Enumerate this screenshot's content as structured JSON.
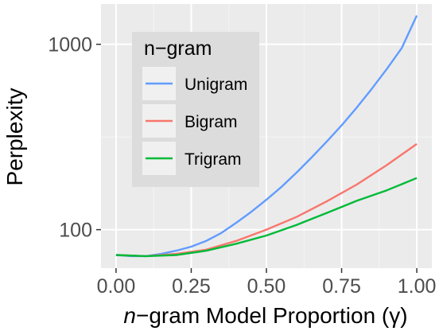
{
  "chart_data": {
    "type": "line",
    "xlabel": "n−gram Model Proportion (γ)",
    "ylabel": "Perplexity",
    "x_ticks": [
      "0.00",
      "0.25",
      "0.50",
      "0.75",
      "1.00"
    ],
    "x_tick_values": [
      0,
      0.25,
      0.5,
      0.75,
      1.0
    ],
    "y_ticks": [
      "100",
      "1000"
    ],
    "y_tick_values": [
      100,
      1000
    ],
    "y_scale": "log",
    "xlim": [
      -0.05,
      1.05
    ],
    "ylim": [
      62,
      1650
    ],
    "grid": true,
    "legend": {
      "title": "n−gram",
      "position": "top-left"
    },
    "series": [
      {
        "name": "Unigram",
        "color": "#619cff",
        "x": [
          0,
          0.05,
          0.1,
          0.15,
          0.2,
          0.25,
          0.3,
          0.35,
          0.4,
          0.45,
          0.5,
          0.55,
          0.6,
          0.65,
          0.7,
          0.75,
          0.8,
          0.85,
          0.9,
          0.95,
          1.0
        ],
        "y": [
          73,
          72,
          72,
          74,
          77,
          81,
          87,
          96,
          109,
          125,
          145,
          170,
          203,
          245,
          298,
          365,
          455,
          575,
          735,
          955,
          1430
        ]
      },
      {
        "name": "Bigram",
        "color": "#f8766d",
        "x": [
          0,
          0.1,
          0.2,
          0.3,
          0.4,
          0.5,
          0.6,
          0.7,
          0.8,
          0.9,
          1.0
        ],
        "y": [
          73,
          72,
          74,
          78,
          87,
          100,
          117,
          142,
          175,
          223,
          290
        ]
      },
      {
        "name": "Trigram",
        "color": "#00ba38",
        "x": [
          0,
          0.1,
          0.2,
          0.3,
          0.4,
          0.5,
          0.6,
          0.7,
          0.8,
          0.9,
          1.0
        ],
        "y": [
          73,
          72,
          73,
          77,
          84,
          93,
          106,
          123,
          143,
          163,
          190
        ]
      }
    ]
  }
}
